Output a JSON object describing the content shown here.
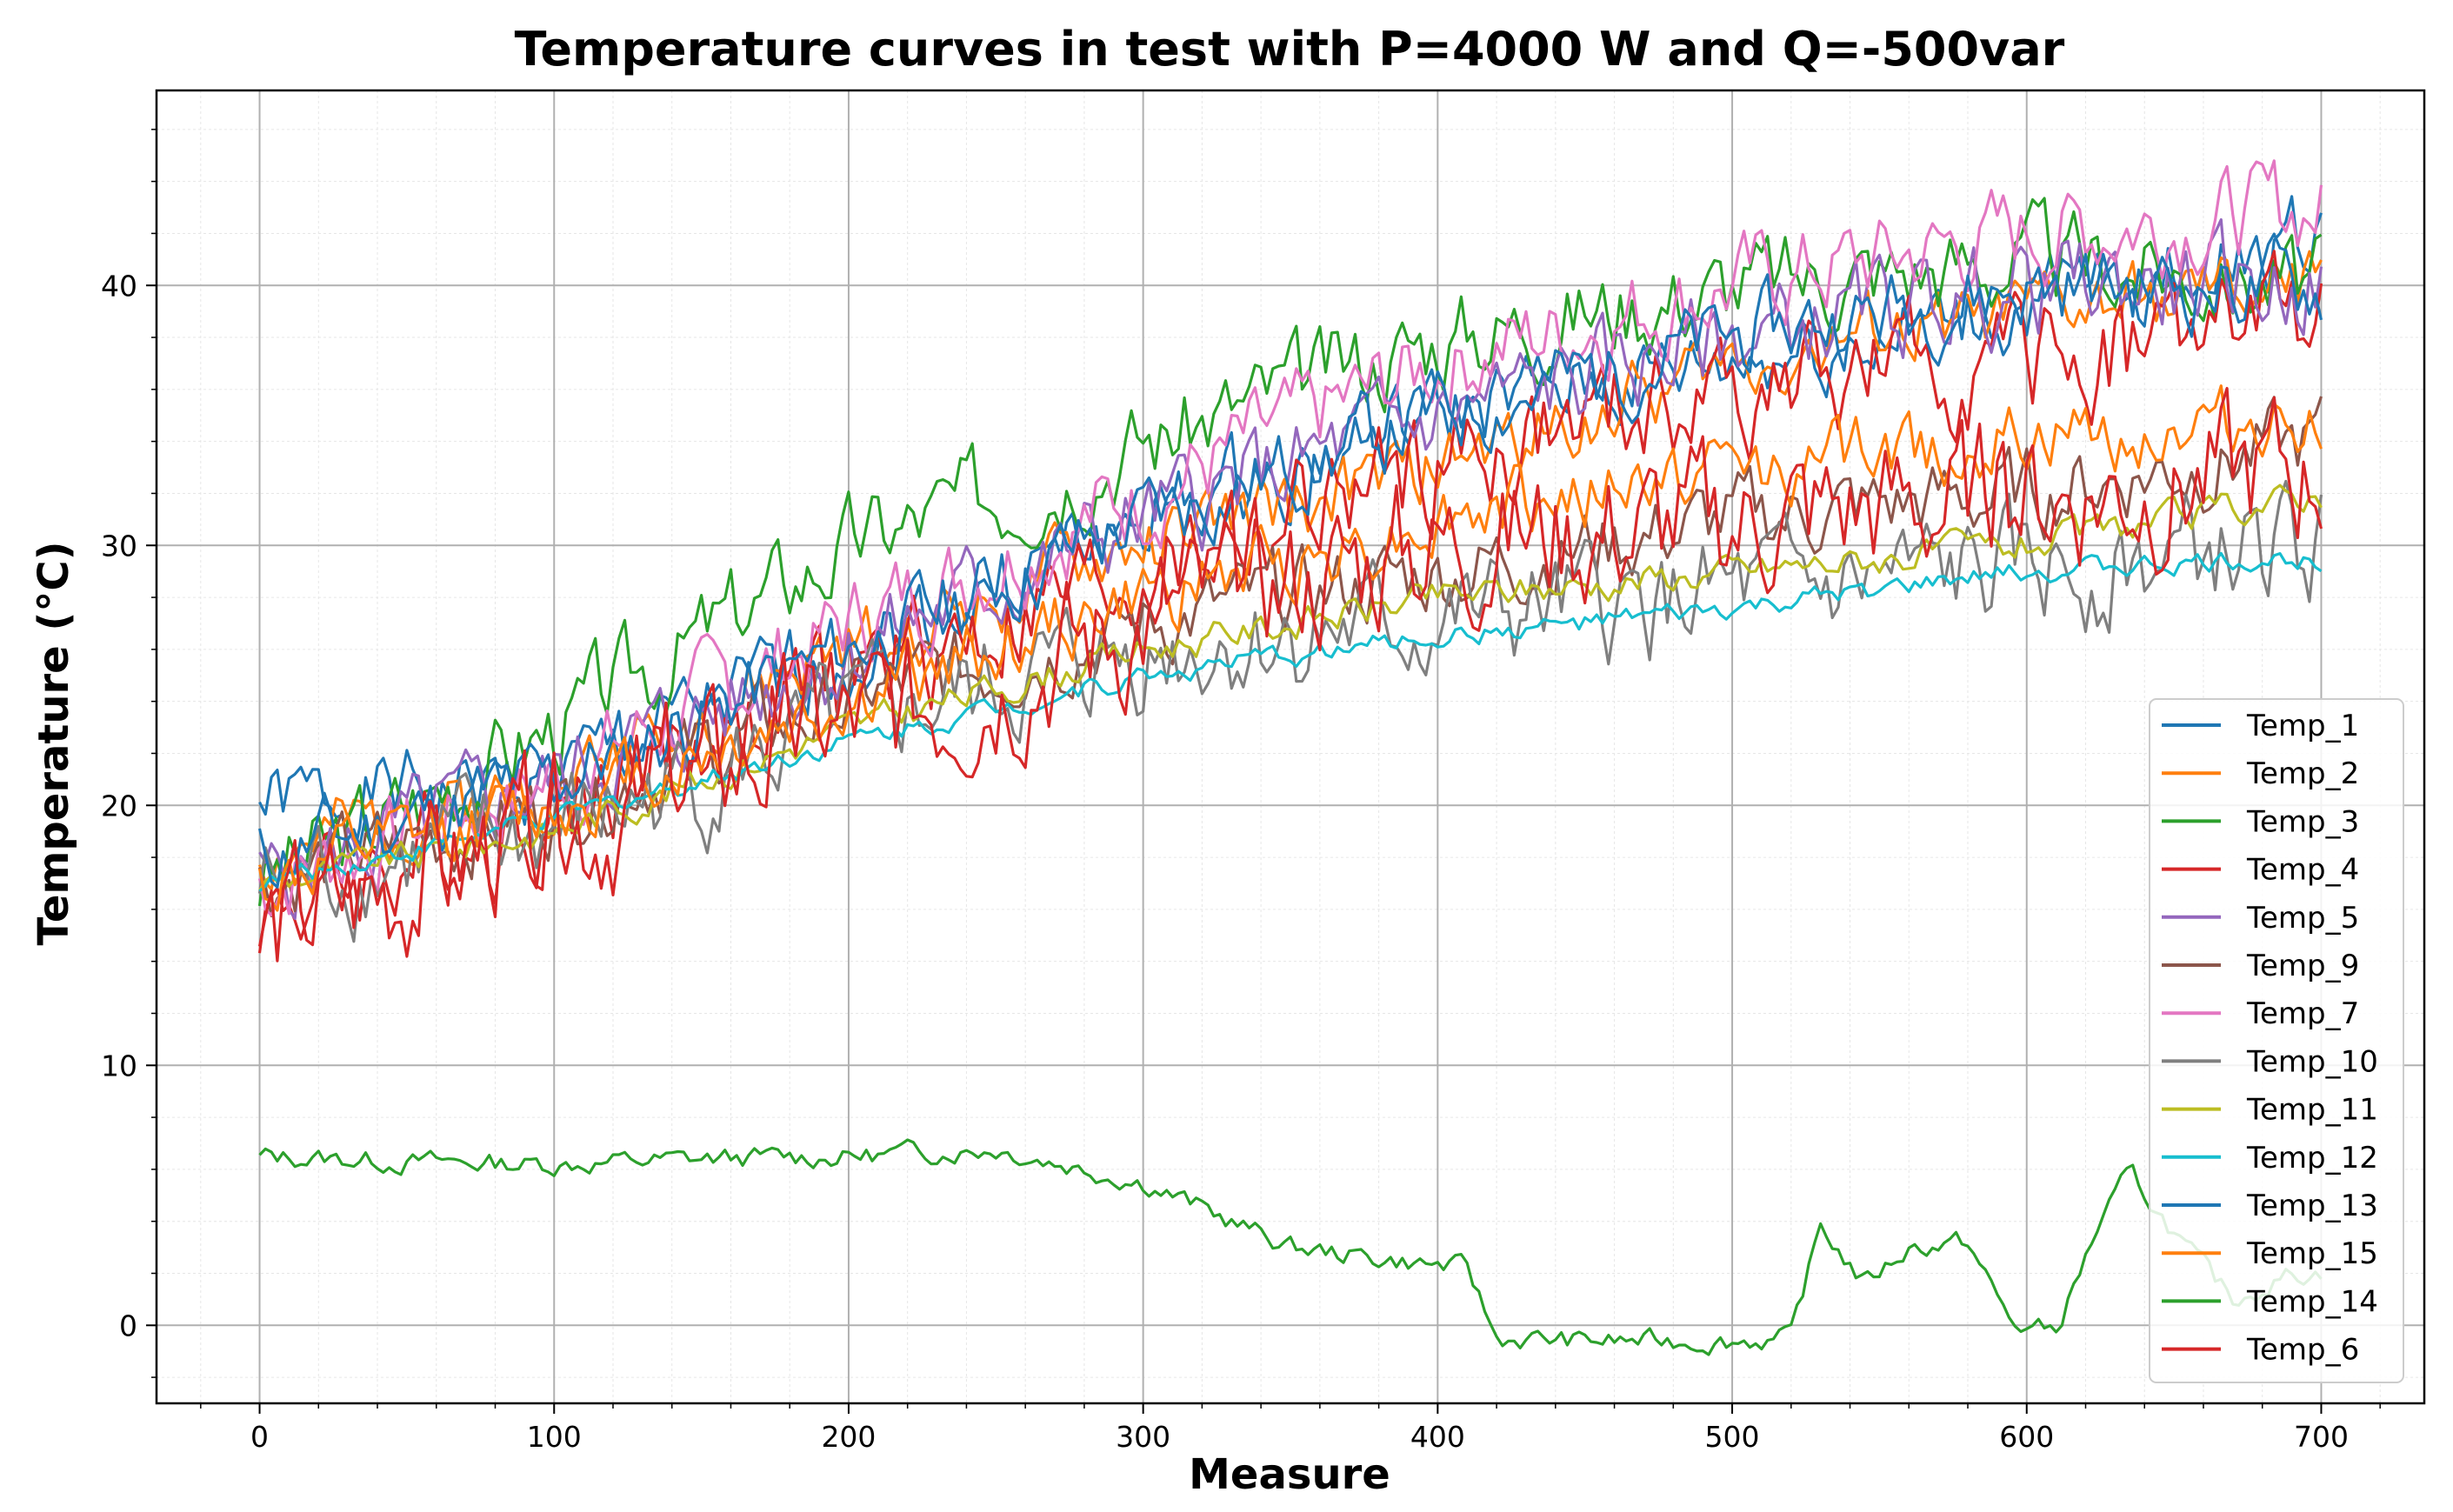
{
  "chart_data": {
    "type": "line",
    "title": "Temperature curves in test with P=4000 W and Q=-500var",
    "xlabel": "Measure",
    "ylabel": "Temperature (°C)",
    "xlim": [
      -35,
      735
    ],
    "ylim": [
      -3,
      47.5
    ],
    "x_ticks": [
      0,
      100,
      200,
      300,
      400,
      500,
      600,
      700
    ],
    "y_ticks": [
      0,
      10,
      20,
      30,
      40
    ],
    "grid": "major and minor",
    "legend_placement": "lower-right",
    "x_range": [
      0,
      700
    ],
    "series": [
      {
        "name": "Temp_1",
        "color": "#1f77b4",
        "x": [
          0,
          100,
          200,
          300,
          400,
          500,
          600,
          700
        ],
        "values": [
          20,
          21,
          26,
          31,
          35,
          37,
          39,
          42
        ],
        "amp": 1.6
      },
      {
        "name": "Temp_2",
        "color": "#ff7f0e",
        "x": [
          0,
          100,
          200,
          300,
          400,
          500,
          600,
          700
        ],
        "values": [
          18,
          21,
          26,
          30,
          33,
          37,
          39,
          40
        ],
        "amp": 1.4
      },
      {
        "name": "Temp_3",
        "color": "#2ca02c",
        "x": [
          0,
          100,
          200,
          300,
          400,
          500,
          600,
          700
        ],
        "values": [
          17,
          23,
          30,
          34,
          38,
          40,
          41,
          40
        ],
        "amp": 1.8
      },
      {
        "name": "Temp_4",
        "color": "#d62728",
        "x": [
          0,
          100,
          200,
          300,
          400,
          500,
          600,
          700
        ],
        "values": [
          16,
          20,
          25,
          29,
          33,
          36,
          37,
          39
        ],
        "amp": 2.2
      },
      {
        "name": "Temp_5",
        "color": "#9467bd",
        "x": [
          0,
          100,
          200,
          300,
          400,
          500,
          600,
          700
        ],
        "values": [
          17,
          21,
          26,
          31,
          35,
          38,
          40,
          40
        ],
        "amp": 1.8
      },
      {
        "name": "Temp_9",
        "color": "#8c564b",
        "x": [
          0,
          100,
          200,
          300,
          400,
          500,
          600,
          700
        ],
        "values": [
          17,
          20,
          24,
          27,
          29,
          31,
          32,
          34
        ],
        "amp": 1.6
      },
      {
        "name": "Temp_7",
        "color": "#e377c2",
        "x": [
          0,
          100,
          200,
          300,
          400,
          500,
          600,
          700
        ],
        "values": [
          17,
          21,
          27,
          32,
          37,
          40,
          42,
          43
        ],
        "amp": 1.8
      },
      {
        "name": "Temp_10",
        "color": "#7f7f7f",
        "x": [
          0,
          100,
          200,
          300,
          400,
          500,
          600,
          700
        ],
        "values": [
          17,
          19,
          23,
          26,
          27,
          28,
          29,
          30
        ],
        "amp": 2.2
      },
      {
        "name": "Temp_11",
        "color": "#bcbd22",
        "x": [
          0,
          100,
          200,
          300,
          400,
          500,
          600,
          700
        ],
        "values": [
          17,
          19,
          23,
          26,
          28,
          29,
          30,
          32
        ],
        "amp": 0.6
      },
      {
        "name": "Temp_12",
        "color": "#17becf",
        "x": [
          0,
          100,
          200,
          300,
          400,
          500,
          600,
          700
        ],
        "values": [
          17,
          19.5,
          22.5,
          25,
          26.5,
          27.5,
          29,
          29.5
        ],
        "amp": 0.4
      },
      {
        "name": "Temp_13",
        "color": "#1f77b4",
        "x": [
          0,
          100,
          200,
          300,
          400,
          500,
          600,
          700
        ],
        "values": [
          18,
          21,
          26,
          31,
          35,
          38,
          40,
          40
        ],
        "amp": 1.6
      },
      {
        "name": "Temp_15",
        "color": "#ff7f0e",
        "x": [
          0,
          100,
          200,
          300,
          400,
          500,
          600,
          700
        ],
        "values": [
          17,
          20,
          24,
          28,
          31,
          33,
          34,
          35
        ],
        "amp": 1.4
      },
      {
        "name": "Temp_14",
        "color": "#2ca02c",
        "x": [
          0,
          50,
          100,
          150,
          200,
          250,
          300,
          350,
          400,
          410,
          420,
          450,
          500,
          520,
          530,
          545,
          560,
          580,
          595,
          610,
          625,
          635,
          655,
          670,
          690,
          700
        ],
        "values": [
          6.5,
          6.3,
          6.2,
          6.4,
          6.5,
          6.8,
          5.5,
          3.0,
          2.3,
          2.2,
          -0.5,
          -0.6,
          -0.6,
          -0.5,
          3.8,
          1.6,
          3.0,
          3.2,
          0.0,
          -0.2,
          4.0,
          5.8,
          2.8,
          1.0,
          2.0,
          2.0
        ],
        "amp": 0.4
      },
      {
        "name": "Temp_6",
        "color": "#d62728",
        "x": [
          0,
          100,
          200,
          300,
          400,
          500,
          600,
          700
        ],
        "values": [
          15,
          19,
          23,
          27,
          30,
          31,
          32,
          33
        ],
        "amp": 2.8
      }
    ]
  }
}
